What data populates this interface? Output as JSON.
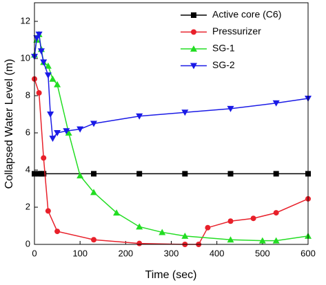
{
  "chart_data": {
    "type": "line",
    "x_label": "Time (sec)",
    "y_label": "Collapsed Water Level (m)",
    "xlim": [
      0,
      600
    ],
    "ylim": [
      0,
      13
    ],
    "xticks": [
      0,
      100,
      200,
      300,
      400,
      500,
      600
    ],
    "yticks": [
      0,
      2,
      4,
      6,
      8,
      10,
      12
    ],
    "legend": "upper right",
    "series": [
      {
        "name": "Active core (C6)",
        "color": "#000000",
        "marker": "square",
        "x": [
          0,
          10,
          15,
          20,
          130,
          230,
          330,
          430,
          530,
          600
        ],
        "values": [
          3.8,
          3.8,
          3.8,
          3.8,
          3.8,
          3.8,
          3.8,
          3.8,
          3.8,
          3.8
        ]
      },
      {
        "name": "Pressurizer",
        "color": "#e8202a",
        "marker": "circle",
        "x": [
          0,
          10,
          20,
          30,
          50,
          130,
          230,
          330,
          360,
          380,
          430,
          480,
          530,
          600
        ],
        "values": [
          8.9,
          8.15,
          4.65,
          1.8,
          0.7,
          0.25,
          0.05,
          0,
          0,
          0.9,
          1.25,
          1.4,
          1.7,
          2.45
        ]
      },
      {
        "name": "SG-1",
        "color": "#22dd22",
        "marker": "triangle-up",
        "x": [
          0,
          5,
          10,
          15,
          20,
          30,
          40,
          50,
          75,
          100,
          130,
          180,
          230,
          280,
          330,
          430,
          500,
          530,
          600
        ],
        "values": [
          10.2,
          11.0,
          11.3,
          10.5,
          9.8,
          9.6,
          8.9,
          8.6,
          6.0,
          3.7,
          2.8,
          1.7,
          0.95,
          0.65,
          0.45,
          0.25,
          0.2,
          0.2,
          0.45
        ]
      },
      {
        "name": "SG-2",
        "color": "#1a1ae6",
        "marker": "triangle-down",
        "x": [
          0,
          5,
          10,
          15,
          20,
          30,
          35,
          40,
          50,
          70,
          100,
          130,
          230,
          330,
          430,
          530,
          600
        ],
        "values": [
          10.1,
          11.1,
          11.3,
          10.4,
          9.8,
          9.1,
          7.0,
          5.7,
          6.0,
          6.1,
          6.2,
          6.5,
          6.9,
          7.1,
          7.3,
          7.6,
          7.85
        ]
      }
    ]
  }
}
